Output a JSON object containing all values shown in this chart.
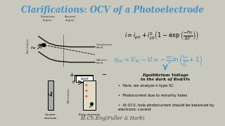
{
  "title": "Clarifications: OCV of a Photoelectrode",
  "title_color": "#4a90c8",
  "bg_color": "#c8c8bc",
  "eq2_color": "#4a90c8",
  "footer": "El.Ch.Eng(Fuller & Harb)",
  "footer_color": "#444444",
  "bullets": [
    "Here, we analyze n-type SC",
    "Photocurrent due to minority holes",
    "At OCV, hole photocurrent should be balanced by electronic current"
  ]
}
